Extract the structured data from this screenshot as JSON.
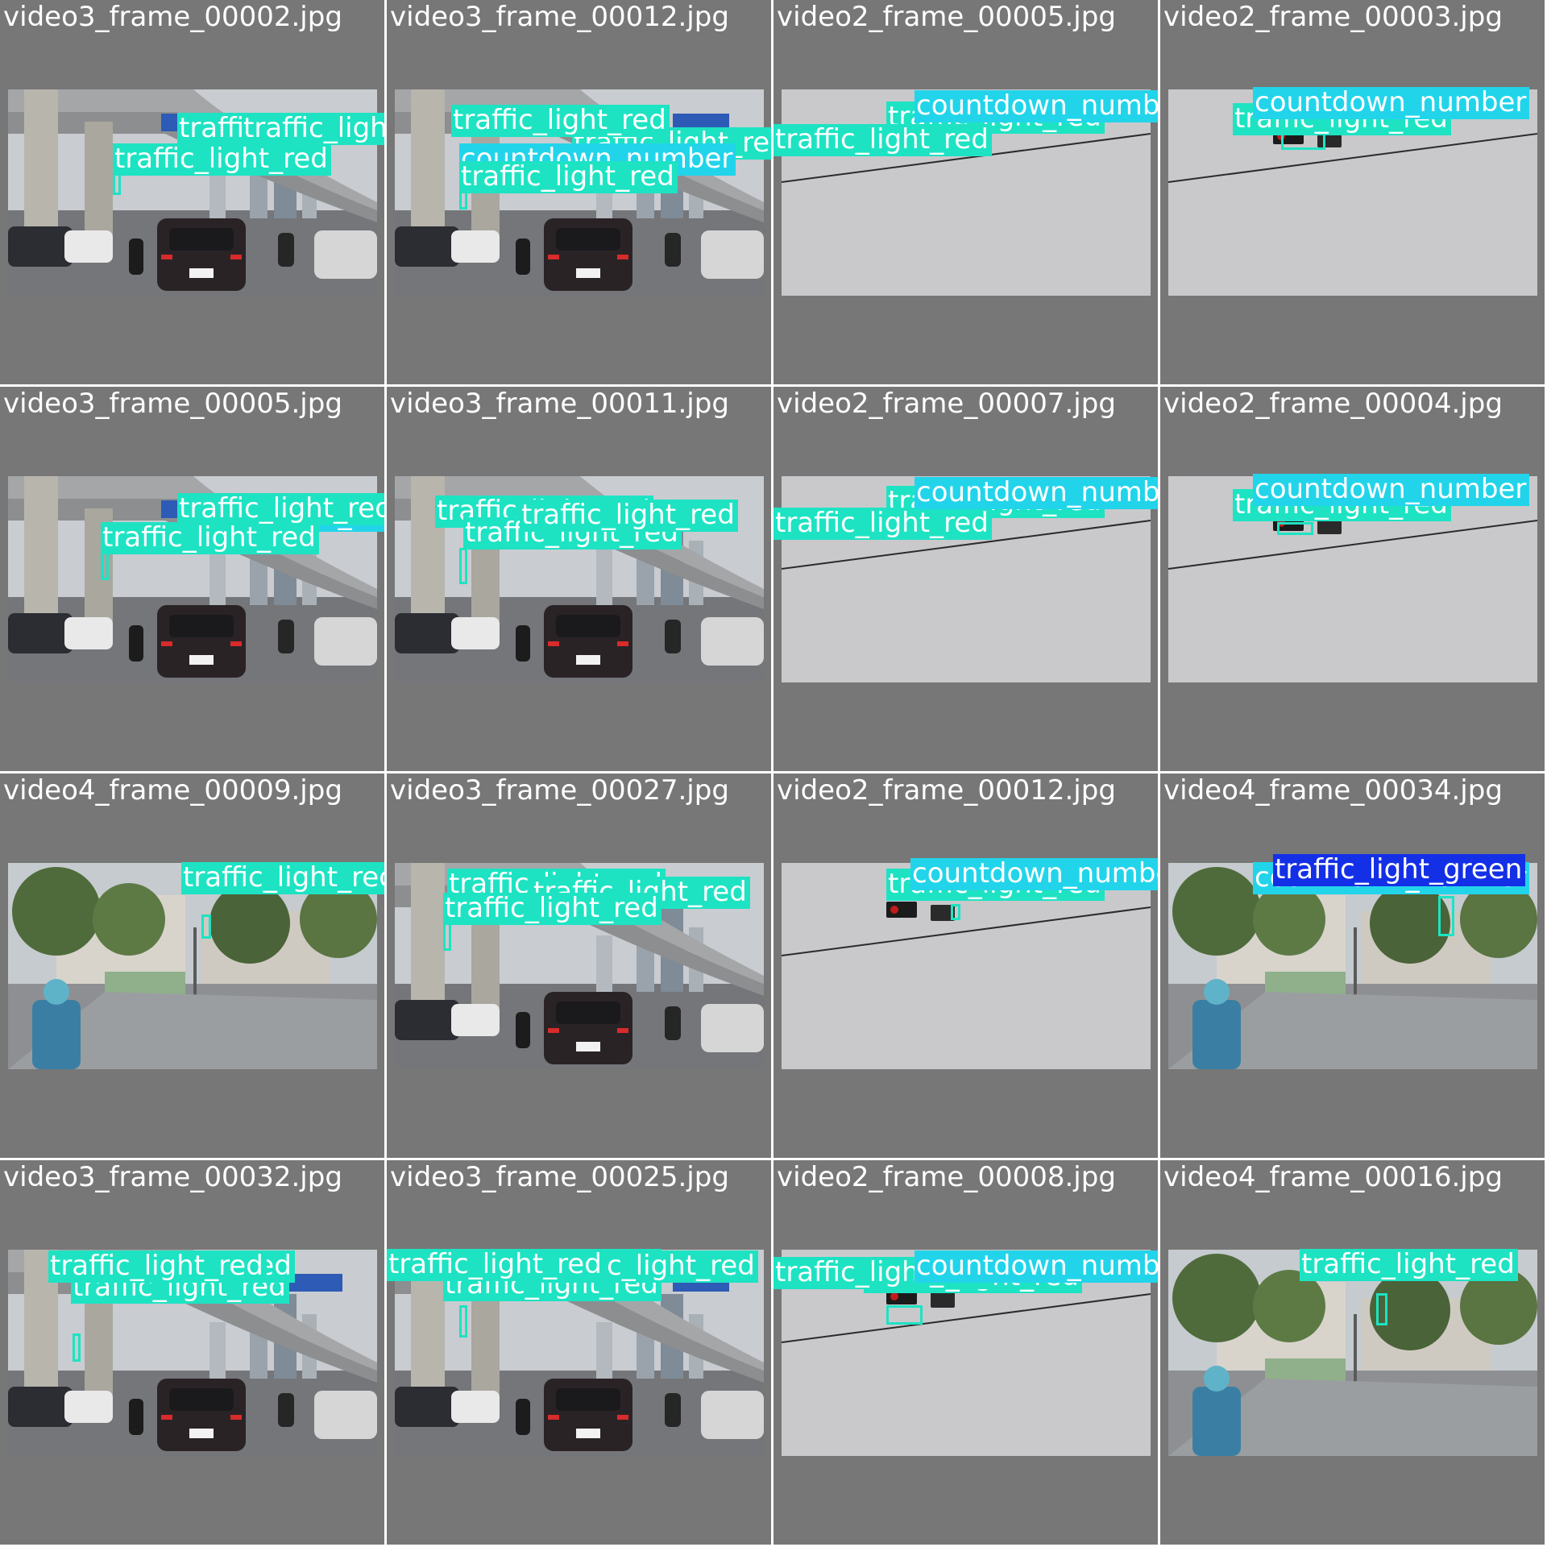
{
  "colors": {
    "background": "#777777",
    "traffic_light_red": "#1de3c3",
    "countdown_number": "#22d4ea",
    "traffic_light_green": "#1430e6"
  },
  "tiles": [
    {
      "filename": "video3_frame_00002.jpg",
      "scene": "flyover",
      "labels": [
        "countdown_number",
        "traffic_light_red",
        "traffic_light_red",
        "traffic_light_red"
      ]
    },
    {
      "filename": "video3_frame_00012.jpg",
      "scene": "flyover",
      "labels": [
        "traffic_light_red",
        "traffic_light_red",
        "countdown_number",
        "traffic_light_red"
      ]
    },
    {
      "filename": "video2_frame_00005.jpg",
      "scene": "sky",
      "labels": [
        "traffic_light_red",
        "traffic_light_red",
        "countdown_number"
      ]
    },
    {
      "filename": "video2_frame_00003.jpg",
      "scene": "sky",
      "labels": [
        "traffic_light_red",
        "countdown_number"
      ]
    },
    {
      "filename": "video3_frame_00005.jpg",
      "scene": "flyover",
      "labels": [
        "countdown_number",
        "traffic_light_red",
        "traffic_light_red"
      ]
    },
    {
      "filename": "video3_frame_00011.jpg",
      "scene": "flyover",
      "labels": [
        "traffic_light_red",
        "traffic_light_red",
        "traffic_light_red"
      ]
    },
    {
      "filename": "video2_frame_00007.jpg",
      "scene": "sky",
      "labels": [
        "traffic_light_red",
        "traffic_light_red",
        "countdown_number"
      ]
    },
    {
      "filename": "video2_frame_00004.jpg",
      "scene": "sky",
      "labels": [
        "traffic_light_red",
        "countdown_number"
      ]
    },
    {
      "filename": "video4_frame_00009.jpg",
      "scene": "street",
      "labels": [
        "traffic_light_red"
      ]
    },
    {
      "filename": "video3_frame_00027.jpg",
      "scene": "flyover",
      "labels": [
        "traffic_light_red",
        "traffic_light_red",
        "traffic_light_red"
      ]
    },
    {
      "filename": "video2_frame_00012.jpg",
      "scene": "sky",
      "labels": [
        "traffic_light_red",
        "countdown_number"
      ]
    },
    {
      "filename": "video4_frame_00034.jpg",
      "scene": "street",
      "labels": [
        "countdown_number",
        "traffic_light_green"
      ]
    },
    {
      "filename": "video3_frame_00032.jpg",
      "scene": "flyover",
      "labels": [
        "traffic_light_red",
        "traffic_light_red",
        "traffic_light_red"
      ]
    },
    {
      "filename": "video3_frame_00025.jpg",
      "scene": "flyover",
      "labels": [
        "traffic_light_red",
        "traffic_light_red",
        "traffic_light_red",
        "traffic_light_red"
      ]
    },
    {
      "filename": "video2_frame_00008.jpg",
      "scene": "sky",
      "labels": [
        "traffic_light_red",
        "traffic_light_red",
        "countdown_number"
      ]
    },
    {
      "filename": "video4_frame_00016.jpg",
      "scene": "street",
      "labels": [
        "traffic_light_red"
      ]
    }
  ]
}
